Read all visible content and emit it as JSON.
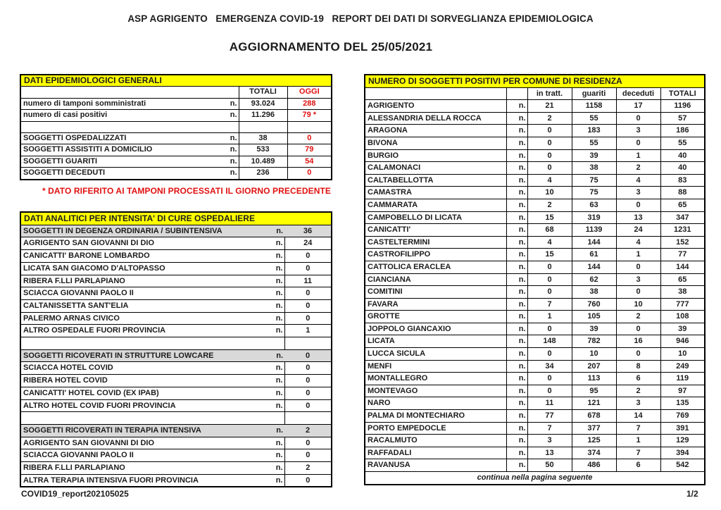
{
  "page": {
    "title": "ASP AGRIGENTO   EMERGENZA COVID-19   REPORT DEI DATI DI SORVEGLIANZA EPIDEMIOLOGICA",
    "subtitle": "AGGIORNAMENTO DEL 25/05/2021",
    "footer_left": "COVID19_report202105025",
    "footer_right": "1/2"
  },
  "colors": {
    "header_yellow": "#ffff00",
    "alert_red": "#e01010",
    "subtotal_gray": "#d9d9d9"
  },
  "epidemiology_table": {
    "title": "DATI EPIDEMIOLOGICI GENERALI",
    "headers": {
      "totali": "TOTALI",
      "oggi": "OGGI"
    },
    "rows": [
      {
        "label": "numero di tamponi somministrati",
        "n": "n.",
        "totali": "93.024",
        "oggi": "288",
        "type": "normal"
      },
      {
        "label": "numero di casi positivi",
        "n": "n.",
        "totali": "11.296",
        "oggi": "79 *",
        "type": "normal"
      },
      {
        "label": "",
        "n": "",
        "totali": "",
        "oggi": "",
        "type": "spacer"
      },
      {
        "label": "SOGGETTI OSPEDALIZZATI",
        "n": "n.",
        "totali": "38",
        "oggi": "0",
        "type": "normal"
      },
      {
        "label": "SOGGETTI ASSISTITI A DOMICILIO",
        "n": "n.",
        "totali": "533",
        "oggi": "79",
        "type": "normal"
      },
      {
        "label": "SOGGETTI GUARITI",
        "n": "n.",
        "totali": "10.489",
        "oggi": "54",
        "type": "normal"
      },
      {
        "label": "SOGGETTI DECEDUTI",
        "n": "n.",
        "totali": "236",
        "oggi": "0",
        "type": "normal"
      }
    ],
    "footnote": "* DATO RIFERITO AI TAMPONI PROCESSATI IL GIORNO PRECEDENTE"
  },
  "hospital_table": {
    "title": "DATI ANALITICI PER INTENSITA' DI CURE OSPEDALIERE",
    "rows": [
      {
        "label": "SOGGETTI IN DEGENZA ORDINARIA / SUBINTENSIVA",
        "n": "n.",
        "value": "36",
        "type": "subtotal"
      },
      {
        "label": "AGRIGENTO SAN GIOVANNI DI DIO",
        "n": "n.",
        "value": "24",
        "type": "normal"
      },
      {
        "label": "CANICATTI'  BARONE LOMBARDO",
        "n": "n.",
        "value": "0",
        "type": "normal"
      },
      {
        "label": "LICATA SAN GIACOMO D'ALTOPASSO",
        "n": "n.",
        "value": "0",
        "type": "normal"
      },
      {
        "label": "RIBERA F.LLI PARLAPIANO",
        "n": "n.",
        "value": "11",
        "type": "normal"
      },
      {
        "label": "SCIACCA GIOVANNI PAOLO II",
        "n": "n.",
        "value": "0",
        "type": "normal"
      },
      {
        "label": "CALTANISSETTA SANT'ELIA",
        "n": "n.",
        "value": "0",
        "type": "normal"
      },
      {
        "label": "PALERMO ARNAS CIVICO",
        "n": "n.",
        "value": "0",
        "type": "normal"
      },
      {
        "label": "ALTRO OSPEDALE FUORI PROVINCIA",
        "n": "n.",
        "value": "1",
        "type": "normal"
      },
      {
        "label": "",
        "n": "",
        "value": "",
        "type": "spacer"
      },
      {
        "label": "SOGGETTI RICOVERATI IN STRUTTURE LOWCARE",
        "n": "n.",
        "value": "0",
        "type": "subtotal"
      },
      {
        "label": "SCIACCA HOTEL COVID",
        "n": "n.",
        "value": "0",
        "type": "normal"
      },
      {
        "label": "RIBERA HOTEL COVID",
        "n": "n.",
        "value": "0",
        "type": "normal"
      },
      {
        "label": "CANICATTI' HOTEL COVID (EX IPAB)",
        "n": "n.",
        "value": "0",
        "type": "normal"
      },
      {
        "label": "ALTRO HOTEL COVID FUORI PROVINCIA",
        "n": "n.",
        "value": "0",
        "type": "normal"
      },
      {
        "label": "",
        "n": "",
        "value": "",
        "type": "spacer"
      },
      {
        "label": "SOGGETTI RICOVERATI IN TERAPIA INTENSIVA",
        "n": "n.",
        "value": "2",
        "type": "subtotal"
      },
      {
        "label": "AGRIGENTO SAN GIOVANNI DI DIO",
        "n": "n.",
        "value": "0",
        "type": "normal"
      },
      {
        "label": "SCIACCA GIOVANNI PAOLO II",
        "n": "n.",
        "value": "0",
        "type": "normal"
      },
      {
        "label": "RIBERA F.LLI PARLAPIANO",
        "n": "n.",
        "value": "2",
        "type": "normal"
      },
      {
        "label": "ALTRA TERAPIA INTENSIVA FUORI PROVINCIA",
        "n": "n.",
        "value": "0",
        "type": "normal"
      }
    ]
  },
  "comuni_table": {
    "title": "NUMERO DI SOGGETTI POSITIVI PER COMUNE DI RESIDENZA",
    "headers": {
      "in_tratt": "in tratt.",
      "guariti": "guariti",
      "deceduti": "deceduti",
      "totali": "TOTALI"
    },
    "rows": [
      {
        "name": "AGRIGENTO",
        "n": "n.",
        "in_tratt": "21",
        "guariti": "1158",
        "deceduti": "17",
        "totali": "1196"
      },
      {
        "name": "ALESSANDRIA DELLA ROCCA",
        "n": "n.",
        "in_tratt": "2",
        "guariti": "55",
        "deceduti": "0",
        "totali": "57"
      },
      {
        "name": "ARAGONA",
        "n": "n.",
        "in_tratt": "0",
        "guariti": "183",
        "deceduti": "3",
        "totali": "186"
      },
      {
        "name": "BIVONA",
        "n": "n.",
        "in_tratt": "0",
        "guariti": "55",
        "deceduti": "0",
        "totali": "55"
      },
      {
        "name": "BURGIO",
        "n": "n.",
        "in_tratt": "0",
        "guariti": "39",
        "deceduti": "1",
        "totali": "40"
      },
      {
        "name": "CALAMONACI",
        "n": "n.",
        "in_tratt": "0",
        "guariti": "38",
        "deceduti": "2",
        "totali": "40"
      },
      {
        "name": "CALTABELLOTTA",
        "n": "n.",
        "in_tratt": "4",
        "guariti": "75",
        "deceduti": "4",
        "totali": "83"
      },
      {
        "name": "CAMASTRA",
        "n": "n.",
        "in_tratt": "10",
        "guariti": "75",
        "deceduti": "3",
        "totali": "88"
      },
      {
        "name": "CAMMARATA",
        "n": "n.",
        "in_tratt": "2",
        "guariti": "63",
        "deceduti": "0",
        "totali": "65"
      },
      {
        "name": "CAMPOBELLO DI LICATA",
        "n": "n.",
        "in_tratt": "15",
        "guariti": "319",
        "deceduti": "13",
        "totali": "347"
      },
      {
        "name": "CANICATTI'",
        "n": "n.",
        "in_tratt": "68",
        "guariti": "1139",
        "deceduti": "24",
        "totali": "1231"
      },
      {
        "name": "CASTELTERMINI",
        "n": "n.",
        "in_tratt": "4",
        "guariti": "144",
        "deceduti": "4",
        "totali": "152"
      },
      {
        "name": "CASTROFILIPPO",
        "n": "n.",
        "in_tratt": "15",
        "guariti": "61",
        "deceduti": "1",
        "totali": "77"
      },
      {
        "name": "CATTOLICA ERACLEA",
        "n": "n.",
        "in_tratt": "0",
        "guariti": "144",
        "deceduti": "0",
        "totali": "144"
      },
      {
        "name": "CIANCIANA",
        "n": "n.",
        "in_tratt": "0",
        "guariti": "62",
        "deceduti": "3",
        "totali": "65"
      },
      {
        "name": "COMITINI",
        "n": "n.",
        "in_tratt": "0",
        "guariti": "38",
        "deceduti": "0",
        "totali": "38"
      },
      {
        "name": "FAVARA",
        "n": "n.",
        "in_tratt": "7",
        "guariti": "760",
        "deceduti": "10",
        "totali": "777"
      },
      {
        "name": "GROTTE",
        "n": "n.",
        "in_tratt": "1",
        "guariti": "105",
        "deceduti": "2",
        "totali": "108"
      },
      {
        "name": "JOPPOLO GIANCAXIO",
        "n": "n.",
        "in_tratt": "0",
        "guariti": "39",
        "deceduti": "0",
        "totali": "39"
      },
      {
        "name": "LICATA",
        "n": "n.",
        "in_tratt": "148",
        "guariti": "782",
        "deceduti": "16",
        "totali": "946"
      },
      {
        "name": "LUCCA SICULA",
        "n": "n.",
        "in_tratt": "0",
        "guariti": "10",
        "deceduti": "0",
        "totali": "10"
      },
      {
        "name": "MENFI",
        "n": "n.",
        "in_tratt": "34",
        "guariti": "207",
        "deceduti": "8",
        "totali": "249"
      },
      {
        "name": "MONTALLEGRO",
        "n": "n.",
        "in_tratt": "0",
        "guariti": "113",
        "deceduti": "6",
        "totali": "119"
      },
      {
        "name": "MONTEVAGO",
        "n": "n.",
        "in_tratt": "0",
        "guariti": "95",
        "deceduti": "2",
        "totali": "97"
      },
      {
        "name": "NARO",
        "n": "n.",
        "in_tratt": "11",
        "guariti": "121",
        "deceduti": "3",
        "totali": "135"
      },
      {
        "name": "PALMA DI MONTECHIARO",
        "n": "n.",
        "in_tratt": "77",
        "guariti": "678",
        "deceduti": "14",
        "totali": "769"
      },
      {
        "name": "PORTO EMPEDOCLE",
        "n": "n.",
        "in_tratt": "7",
        "guariti": "377",
        "deceduti": "7",
        "totali": "391"
      },
      {
        "name": "RACALMUTO",
        "n": "n.",
        "in_tratt": "3",
        "guariti": "125",
        "deceduti": "1",
        "totali": "129"
      },
      {
        "name": "RAFFADALI",
        "n": "n.",
        "in_tratt": "13",
        "guariti": "374",
        "deceduti": "7",
        "totali": "394"
      },
      {
        "name": "RAVANUSA",
        "n": "n.",
        "in_tratt": "50",
        "guariti": "486",
        "deceduti": "6",
        "totali": "542"
      }
    ],
    "footer": "continua nella pagina seguente"
  }
}
